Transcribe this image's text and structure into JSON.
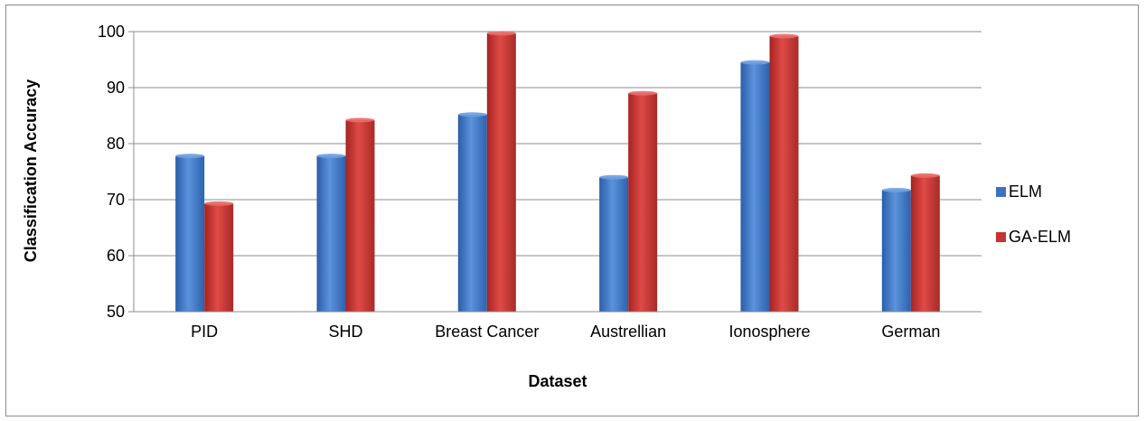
{
  "chart_data": {
    "type": "bar",
    "categories": [
      "PID",
      "SHD",
      "Breast Cancer",
      "Austrellian",
      "Ionosphere",
      "German"
    ],
    "series": [
      {
        "name": "ELM",
        "values": [
          77.8,
          77.8,
          85.2,
          74.0,
          94.5,
          71.7
        ],
        "color": "#3b73c2"
      },
      {
        "name": "GA-ELM",
        "values": [
          69.3,
          84.2,
          99.7,
          89.0,
          99.2,
          74.3
        ],
        "color": "#c43431"
      }
    ],
    "xlabel": "Dataset",
    "ylabel": "Classification Accuracy",
    "ylim": [
      50,
      100
    ],
    "yticks": [
      50,
      60,
      70,
      80,
      90,
      100
    ],
    "grid": true,
    "legend_position": "right"
  }
}
